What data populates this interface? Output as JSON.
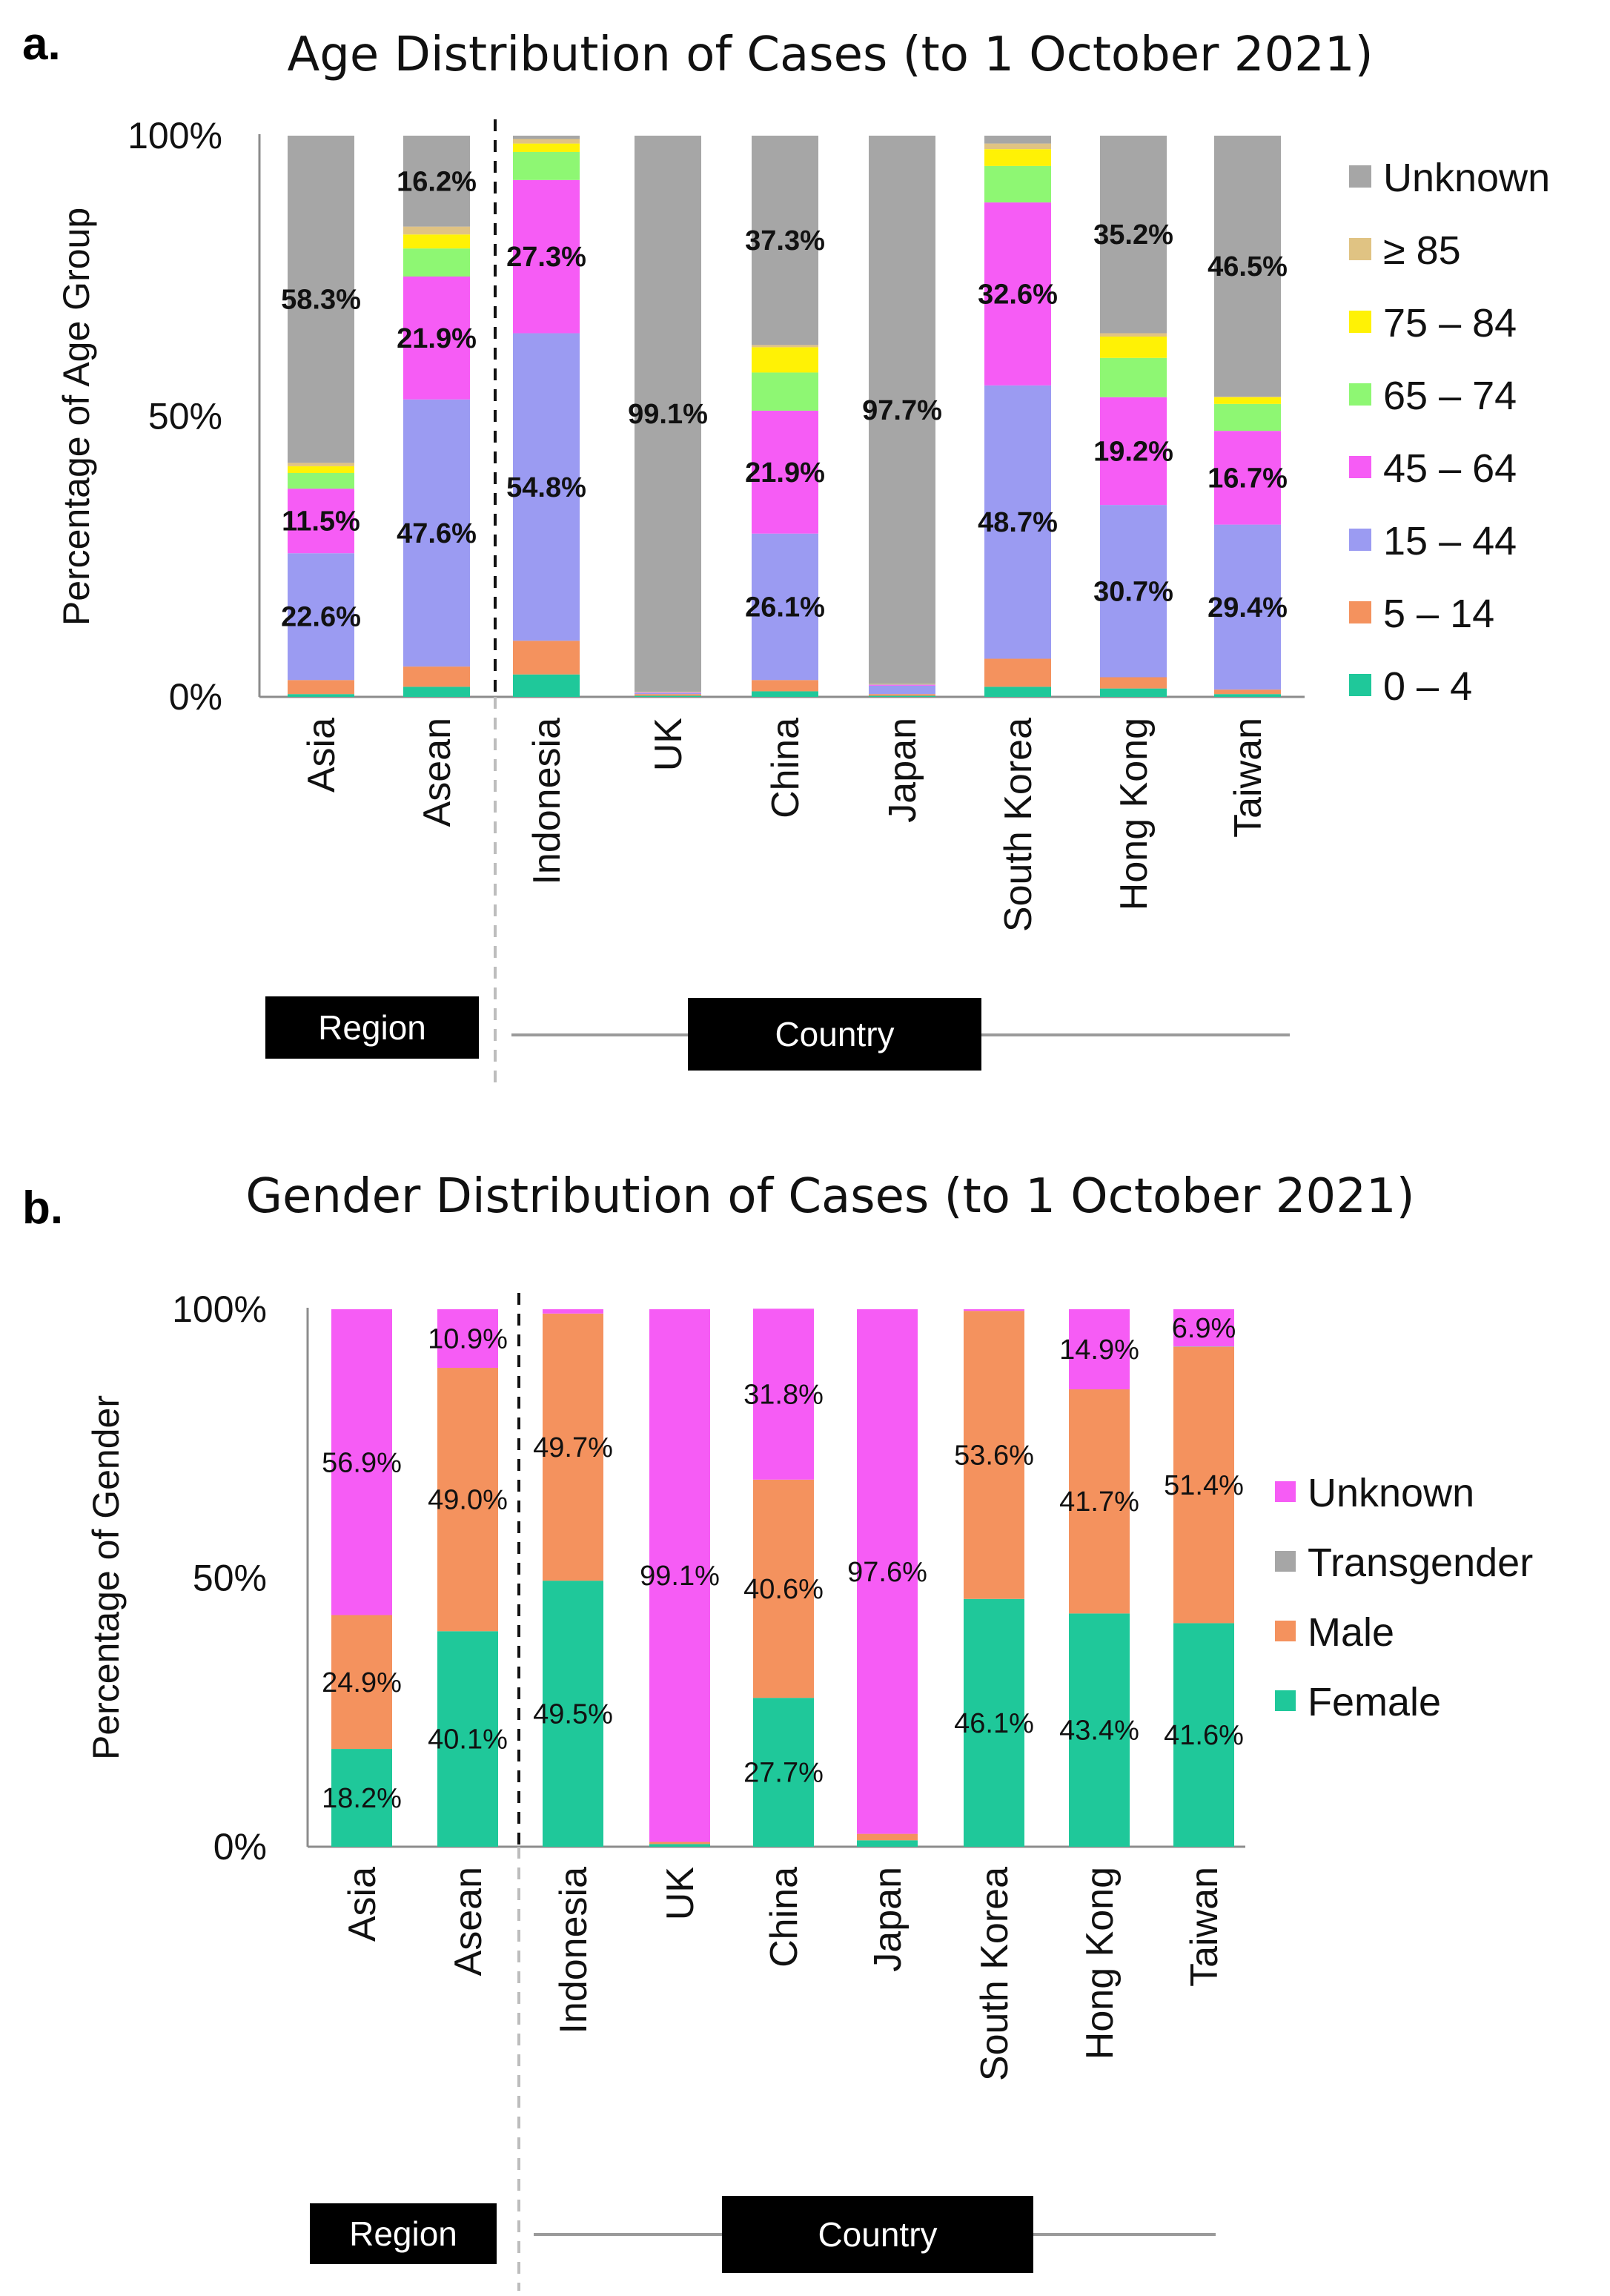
{
  "chart_data": [
    {
      "panel": "a.",
      "type": "bar",
      "stacked": true,
      "title": "Age Distribution of Cases (to 1 October 2021)",
      "ylabel": "Percentage of Age Group",
      "xlabel": "",
      "ylim": [
        0,
        100
      ],
      "yticks": [
        0,
        50,
        100
      ],
      "ytick_labels": [
        "0%",
        "50%",
        "100%"
      ],
      "categories": [
        "Asia",
        "Asean",
        "Indonesia",
        "UK",
        "China",
        "Japan",
        "South Korea",
        "Hong Kong",
        "Taiwan"
      ],
      "group_labels": [
        "Region",
        "Country"
      ],
      "series": [
        {
          "name": "0 – 4",
          "color": "#1FC89A",
          "values": [
            0.5,
            1.8,
            4.0,
            0.2,
            1.0,
            0.2,
            1.8,
            1.5,
            0.5
          ]
        },
        {
          "name": "5 – 14",
          "color": "#F4925E",
          "values": [
            2.5,
            3.6,
            6.0,
            0.3,
            2.0,
            0.3,
            5.0,
            2.0,
            0.8
          ]
        },
        {
          "name": "15 – 44",
          "color": "#9B9BF2",
          "values": [
            22.6,
            47.6,
            54.8,
            0.2,
            26.1,
            1.5,
            48.7,
            30.7,
            29.4
          ]
        },
        {
          "name": "45 – 64",
          "color": "#F65CF5",
          "values": [
            11.5,
            21.9,
            27.3,
            0.1,
            21.9,
            0.2,
            32.6,
            19.2,
            16.7
          ]
        },
        {
          "name": "65 – 74",
          "color": "#8EF773",
          "values": [
            2.8,
            5.0,
            5.0,
            0.05,
            6.8,
            0.05,
            6.5,
            7.0,
            4.8
          ]
        },
        {
          "name": "75 – 84",
          "color": "#FFF205",
          "values": [
            1.2,
            2.5,
            1.5,
            0.03,
            4.5,
            0.03,
            3.0,
            3.8,
            1.2
          ]
        },
        {
          "name": "≥ 85",
          "color": "#E0C383",
          "values": [
            0.6,
            1.4,
            0.8,
            0.02,
            0.4,
            0.02,
            1.0,
            0.6,
            0.1
          ]
        },
        {
          "name": "Unknown",
          "color": "#A6A6A6",
          "values": [
            58.3,
            16.2,
            0.6,
            99.1,
            37.3,
            97.7,
            1.4,
            35.2,
            46.5
          ]
        }
      ],
      "data_labels": [
        {
          "category": "Asia",
          "series": "15 – 44",
          "text": "22.6%"
        },
        {
          "category": "Asia",
          "series": "45 – 64",
          "text": "11.5%"
        },
        {
          "category": "Asia",
          "series": "Unknown",
          "text": "58.3%"
        },
        {
          "category": "Asean",
          "series": "15 – 44",
          "text": "47.6%"
        },
        {
          "category": "Asean",
          "series": "45 – 64",
          "text": "21.9%"
        },
        {
          "category": "Asean",
          "series": "Unknown",
          "text": "16.2%"
        },
        {
          "category": "Indonesia",
          "series": "15 – 44",
          "text": "54.8%"
        },
        {
          "category": "Indonesia",
          "series": "45 – 64",
          "text": "27.3%"
        },
        {
          "category": "UK",
          "series": "Unknown",
          "text": "99.1%"
        },
        {
          "category": "China",
          "series": "15 – 44",
          "text": "26.1%"
        },
        {
          "category": "China",
          "series": "45 – 64",
          "text": "21.9%"
        },
        {
          "category": "China",
          "series": "Unknown",
          "text": "37.3%"
        },
        {
          "category": "Japan",
          "series": "Unknown",
          "text": "97.7%"
        },
        {
          "category": "South Korea",
          "series": "15 – 44",
          "text": "48.7%"
        },
        {
          "category": "South Korea",
          "series": "45 – 64",
          "text": "32.6%"
        },
        {
          "category": "Hong Kong",
          "series": "15 – 44",
          "text": "30.7%"
        },
        {
          "category": "Hong Kong",
          "series": "45 – 64",
          "text": "19.2%"
        },
        {
          "category": "Hong Kong",
          "series": "Unknown",
          "text": "35.2%"
        },
        {
          "category": "Taiwan",
          "series": "15 – 44",
          "text": "29.4%"
        },
        {
          "category": "Taiwan",
          "series": "45 – 64",
          "text": "16.7%"
        },
        {
          "category": "Taiwan",
          "series": "Unknown",
          "text": "46.5%"
        }
      ],
      "legend_position": "right"
    },
    {
      "panel": "b.",
      "type": "bar",
      "stacked": true,
      "title": "Gender Distribution of Cases (to 1 October 2021)",
      "ylabel": "Percentage of Gender",
      "xlabel": "",
      "ylim": [
        0,
        100
      ],
      "yticks": [
        0,
        50,
        100
      ],
      "ytick_labels": [
        "0%",
        "50%",
        "100%"
      ],
      "categories": [
        "Asia",
        "Asean",
        "Indonesia",
        "UK",
        "China",
        "Japan",
        "South Korea",
        "Hong Kong",
        "Taiwan"
      ],
      "group_labels": [
        "Region",
        "Country"
      ],
      "series": [
        {
          "name": "Female",
          "color": "#1FC89A",
          "values": [
            18.2,
            40.1,
            49.5,
            0.5,
            27.7,
            1.2,
            46.1,
            43.4,
            41.6
          ]
        },
        {
          "name": "Male",
          "color": "#F4925E",
          "values": [
            24.9,
            49.0,
            49.7,
            0.4,
            40.6,
            1.2,
            53.6,
            41.7,
            51.4
          ]
        },
        {
          "name": "Transgender",
          "color": "#A6A6A6",
          "values": [
            0,
            0,
            0,
            0,
            0,
            0,
            0,
            0,
            0.1
          ]
        },
        {
          "name": "Unknown",
          "color": "#F65CF5",
          "values": [
            56.9,
            10.9,
            0.8,
            99.1,
            31.8,
            97.6,
            0.3,
            14.9,
            6.9
          ]
        }
      ],
      "data_labels": [
        {
          "category": "Asia",
          "series": "Female",
          "text": "18.2%"
        },
        {
          "category": "Asia",
          "series": "Male",
          "text": "24.9%"
        },
        {
          "category": "Asia",
          "series": "Unknown",
          "text": "56.9%"
        },
        {
          "category": "Asean",
          "series": "Female",
          "text": "40.1%"
        },
        {
          "category": "Asean",
          "series": "Male",
          "text": "49.0%"
        },
        {
          "category": "Asean",
          "series": "Unknown",
          "text": "10.9%"
        },
        {
          "category": "Indonesia",
          "series": "Female",
          "text": "49.5%"
        },
        {
          "category": "Indonesia",
          "series": "Male",
          "text": "49.7%"
        },
        {
          "category": "UK",
          "series": "Unknown",
          "text": "99.1%"
        },
        {
          "category": "China",
          "series": "Female",
          "text": "27.7%"
        },
        {
          "category": "China",
          "series": "Male",
          "text": "40.6%"
        },
        {
          "category": "China",
          "series": "Unknown",
          "text": "31.8%"
        },
        {
          "category": "Japan",
          "series": "Unknown",
          "text": "97.6%"
        },
        {
          "category": "South Korea",
          "series": "Female",
          "text": "46.1%"
        },
        {
          "category": "South Korea",
          "series": "Male",
          "text": "53.6%"
        },
        {
          "category": "Hong Kong",
          "series": "Female",
          "text": "43.4%"
        },
        {
          "category": "Hong Kong",
          "series": "Male",
          "text": "41.7%"
        },
        {
          "category": "Hong Kong",
          "series": "Unknown",
          "text": "14.9%"
        },
        {
          "category": "Taiwan",
          "series": "Female",
          "text": "41.6%"
        },
        {
          "category": "Taiwan",
          "series": "Male",
          "text": "51.4%"
        },
        {
          "category": "Taiwan",
          "series": "Unknown",
          "text": "6.9%"
        }
      ],
      "legend_position": "right"
    }
  ]
}
